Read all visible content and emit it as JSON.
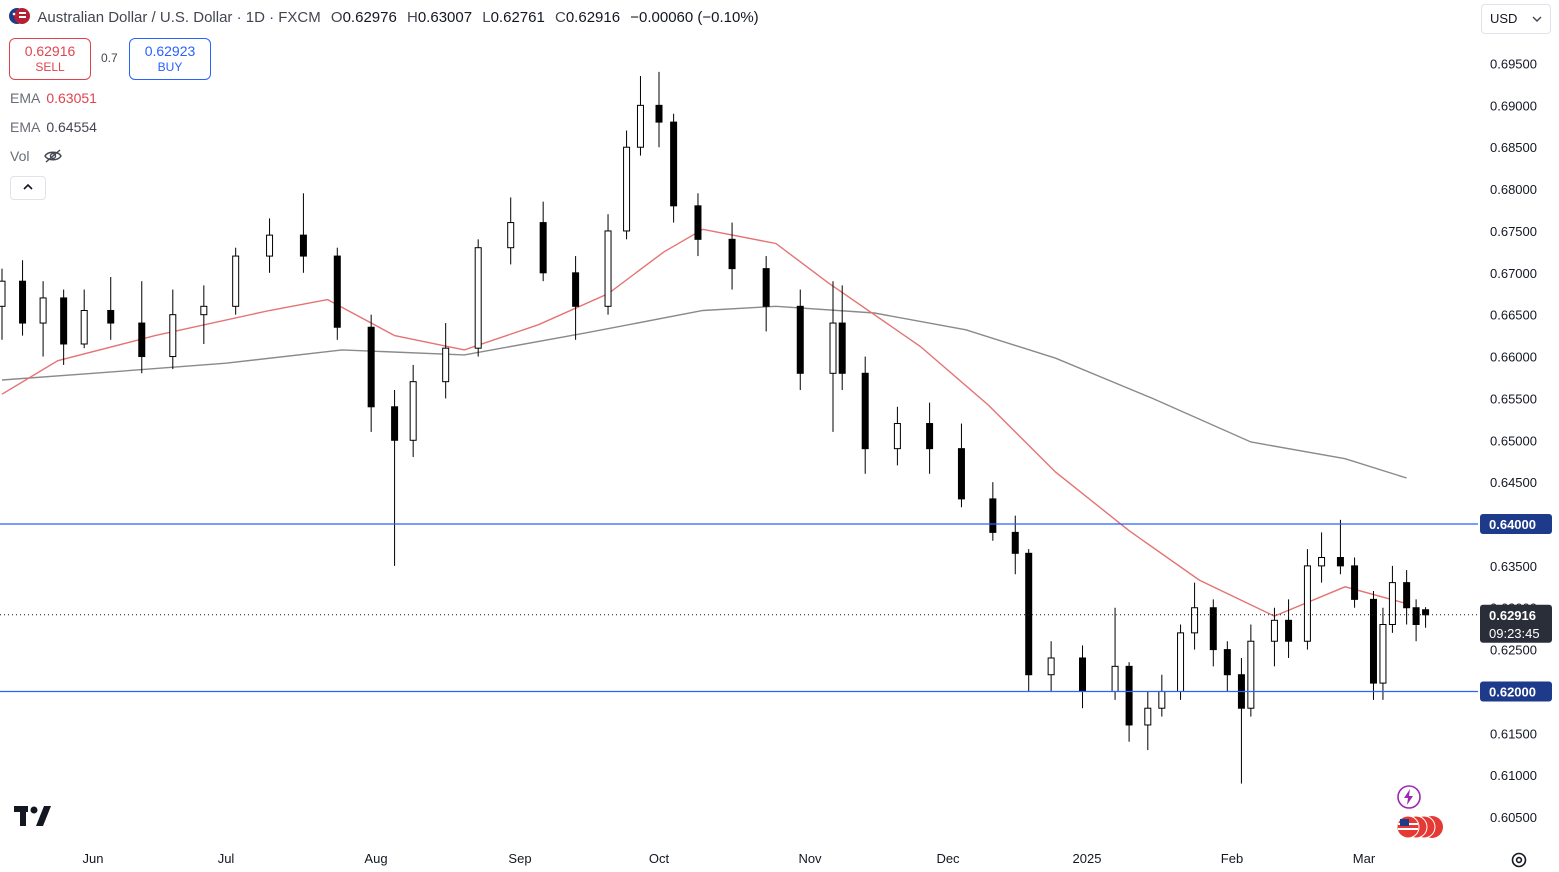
{
  "header": {
    "title": "Australian Dollar / U.S. Dollar · 1D · FXCM",
    "ohlc": [
      {
        "k": "O",
        "v": "0.62976"
      },
      {
        "k": "H",
        "v": "0.63007"
      },
      {
        "k": "L",
        "v": "0.62761"
      },
      {
        "k": "C",
        "v": "0.62916"
      }
    ],
    "change": "−0.00060 (−0.10%)"
  },
  "trade": {
    "sell_price": "0.62916",
    "sell_label": "SELL",
    "spread": "0.7",
    "buy_price": "0.62923",
    "buy_label": "BUY"
  },
  "indicators": {
    "ema1_label": "EMA",
    "ema1_value": "0.63051",
    "ema2_label": "EMA",
    "ema2_value": "0.64554",
    "vol_label": "Vol"
  },
  "currency": "USD",
  "colors": {
    "up": "#ffffff",
    "down": "#000000",
    "ema_fast": "#e57373",
    "ema_slow": "#8a8a8a",
    "hline": "#2962ff",
    "label_bg": "#1e3a8a",
    "price_bg": "#2a2e39"
  },
  "icons": [
    "aud-usd-flag-icon",
    "eye-hidden-icon",
    "chevron-up-icon",
    "chevron-down-icon",
    "tradingview-logo-icon",
    "lightning-icon",
    "us-flags-icon",
    "settings-icon"
  ],
  "chart_data": {
    "type": "candlestick",
    "y_axis": {
      "min": 0.6025,
      "max": 0.699,
      "ticks": [
        "0.60500",
        "0.61000",
        "0.61500",
        "0.62000",
        "0.62500",
        "0.63000",
        "0.63500",
        "0.64000",
        "0.64500",
        "0.65000",
        "0.65500",
        "0.66000",
        "0.66500",
        "0.67000",
        "0.67500",
        "0.68000",
        "0.68500",
        "0.69000",
        "0.69500"
      ]
    },
    "x_axis": {
      "labels": [
        {
          "label": "Jun",
          "date": "2024-06-01"
        },
        {
          "label": "Jul",
          "date": "2024-07-01"
        },
        {
          "label": "Aug",
          "date": "2024-08-01"
        },
        {
          "label": "Sep",
          "date": "2024-09-01"
        },
        {
          "label": "Oct",
          "date": "2024-10-01"
        },
        {
          "label": "Nov",
          "date": "2024-11-01"
        },
        {
          "label": "Dec",
          "date": "2024-12-01"
        },
        {
          "label": "2025",
          "date": "2025-01-01"
        },
        {
          "label": "Feb",
          "date": "2025-02-01"
        },
        {
          "label": "Mar",
          "date": "2025-03-01"
        }
      ]
    },
    "horizontal_lines": [
      {
        "price": 0.64,
        "label": "0.64000"
      },
      {
        "price": 0.62,
        "label": "0.62000"
      }
    ],
    "current_price": {
      "price": 0.62916,
      "label": "0.62916",
      "countdown": "09:23:45"
    },
    "ema_fast": [
      [
        "2024-05-01",
        0.6555
      ],
      [
        "2024-05-20",
        0.6595
      ],
      [
        "2024-06-15",
        0.6625
      ],
      [
        "2024-07-10",
        0.6655
      ],
      [
        "2024-07-22",
        0.6668
      ],
      [
        "2024-08-05",
        0.6625
      ],
      [
        "2024-08-20",
        0.6608
      ],
      [
        "2024-09-05",
        0.6638
      ],
      [
        "2024-09-20",
        0.6675
      ],
      [
        "2024-10-02",
        0.6725
      ],
      [
        "2024-10-10",
        0.6752
      ],
      [
        "2024-10-25",
        0.6735
      ],
      [
        "2024-11-05",
        0.6688
      ],
      [
        "2024-11-25",
        0.6612
      ],
      [
        "2024-12-10",
        0.6542
      ],
      [
        "2024-12-25",
        0.6462
      ],
      [
        "2025-01-10",
        0.6392
      ],
      [
        "2025-01-25",
        0.6333
      ],
      [
        "2025-02-10",
        0.629
      ],
      [
        "2025-02-25",
        0.6325
      ],
      [
        "2025-03-10",
        0.6305
      ]
    ],
    "ema_slow": [
      [
        "2024-05-01",
        0.6572
      ],
      [
        "2024-06-01",
        0.658
      ],
      [
        "2024-07-01",
        0.6592
      ],
      [
        "2024-07-25",
        0.6608
      ],
      [
        "2024-08-20",
        0.6602
      ],
      [
        "2024-09-15",
        0.6628
      ],
      [
        "2024-10-10",
        0.6655
      ],
      [
        "2024-10-25",
        0.666
      ],
      [
        "2024-11-15",
        0.6652
      ],
      [
        "2024-12-05",
        0.6632
      ],
      [
        "2024-12-25",
        0.6598
      ],
      [
        "2025-01-15",
        0.655
      ],
      [
        "2025-02-05",
        0.6498
      ],
      [
        "2025-02-25",
        0.6478
      ],
      [
        "2025-03-10",
        0.6455
      ]
    ],
    "candles": [
      [
        "2024-05-01",
        0.666,
        0.6705,
        0.662,
        0.669
      ],
      [
        "2024-05-08",
        0.669,
        0.6715,
        0.6625,
        0.664
      ],
      [
        "2024-05-15",
        0.664,
        0.669,
        0.66,
        0.667
      ],
      [
        "2024-05-22",
        0.667,
        0.668,
        0.659,
        0.6615
      ],
      [
        "2024-05-29",
        0.6615,
        0.668,
        0.661,
        0.6655
      ],
      [
        "2024-06-05",
        0.6655,
        0.6695,
        0.662,
        0.664
      ],
      [
        "2024-06-12",
        0.664,
        0.669,
        0.658,
        0.66
      ],
      [
        "2024-06-19",
        0.66,
        0.668,
        0.6585,
        0.665
      ],
      [
        "2024-06-26",
        0.665,
        0.6685,
        0.6615,
        0.666
      ],
      [
        "2024-07-03",
        0.666,
        0.673,
        0.665,
        0.672
      ],
      [
        "2024-07-10",
        0.672,
        0.6765,
        0.67,
        0.6745
      ],
      [
        "2024-07-17",
        0.6745,
        0.6795,
        0.67,
        0.672
      ],
      [
        "2024-07-24",
        0.672,
        0.673,
        0.662,
        0.6635
      ],
      [
        "2024-07-31",
        0.6635,
        0.665,
        0.651,
        0.654
      ],
      [
        "2024-08-05",
        0.654,
        0.656,
        0.635,
        0.65
      ],
      [
        "2024-08-09",
        0.65,
        0.659,
        0.648,
        0.657
      ],
      [
        "2024-08-16",
        0.657,
        0.664,
        0.655,
        0.661
      ],
      [
        "2024-08-23",
        0.661,
        0.674,
        0.66,
        0.673
      ],
      [
        "2024-08-30",
        0.673,
        0.679,
        0.671,
        0.676
      ],
      [
        "2024-09-06",
        0.676,
        0.6785,
        0.669,
        0.67
      ],
      [
        "2024-09-13",
        0.67,
        0.672,
        0.662,
        0.666
      ],
      [
        "2024-09-20",
        0.666,
        0.677,
        0.665,
        0.675
      ],
      [
        "2024-09-24",
        0.675,
        0.687,
        0.674,
        0.685
      ],
      [
        "2024-09-27",
        0.685,
        0.6935,
        0.684,
        0.69
      ],
      [
        "2024-10-01",
        0.69,
        0.694,
        0.685,
        0.688
      ],
      [
        "2024-10-04",
        0.688,
        0.689,
        0.676,
        0.678
      ],
      [
        "2024-10-09",
        0.678,
        0.6795,
        0.672,
        0.674
      ],
      [
        "2024-10-16",
        0.674,
        0.676,
        0.668,
        0.6705
      ],
      [
        "2024-10-23",
        0.6705,
        0.672,
        0.663,
        0.666
      ],
      [
        "2024-10-30",
        0.666,
        0.668,
        0.656,
        0.658
      ],
      [
        "2024-11-06",
        0.658,
        0.669,
        0.651,
        0.664
      ],
      [
        "2024-11-08",
        0.664,
        0.6685,
        0.656,
        0.658
      ],
      [
        "2024-11-13",
        0.658,
        0.66,
        0.646,
        0.649
      ],
      [
        "2024-11-20",
        0.649,
        0.654,
        0.647,
        0.652
      ],
      [
        "2024-11-27",
        0.652,
        0.6545,
        0.646,
        0.649
      ],
      [
        "2024-12-04",
        0.649,
        0.652,
        0.642,
        0.643
      ],
      [
        "2024-12-11",
        0.643,
        0.645,
        0.638,
        0.639
      ],
      [
        "2024-12-16",
        0.639,
        0.641,
        0.634,
        0.6365
      ],
      [
        "2024-12-19",
        0.6365,
        0.637,
        0.62,
        0.622
      ],
      [
        "2024-12-24",
        0.622,
        0.626,
        0.62,
        0.624
      ],
      [
        "2024-12-31",
        0.624,
        0.6255,
        0.618,
        0.62
      ],
      [
        "2025-01-07",
        0.62,
        0.63,
        0.619,
        0.623
      ],
      [
        "2025-01-10",
        0.623,
        0.6235,
        0.614,
        0.616
      ],
      [
        "2025-01-14",
        0.616,
        0.62,
        0.613,
        0.618
      ],
      [
        "2025-01-17",
        0.618,
        0.622,
        0.617,
        0.62
      ],
      [
        "2025-01-21",
        0.62,
        0.628,
        0.619,
        0.627
      ],
      [
        "2025-01-24",
        0.627,
        0.633,
        0.625,
        0.63
      ],
      [
        "2025-01-28",
        0.63,
        0.631,
        0.623,
        0.625
      ],
      [
        "2025-01-31",
        0.625,
        0.626,
        0.62,
        0.622
      ],
      [
        "2025-02-03",
        0.622,
        0.624,
        0.609,
        0.618
      ],
      [
        "2025-02-05",
        0.618,
        0.628,
        0.617,
        0.626
      ],
      [
        "2025-02-10",
        0.626,
        0.63,
        0.623,
        0.6285
      ],
      [
        "2025-02-13",
        0.6285,
        0.631,
        0.624,
        0.626
      ],
      [
        "2025-02-17",
        0.626,
        0.637,
        0.625,
        0.635
      ],
      [
        "2025-02-20",
        0.635,
        0.639,
        0.633,
        0.636
      ],
      [
        "2025-02-24",
        0.636,
        0.6405,
        0.634,
        0.635
      ],
      [
        "2025-02-27",
        0.635,
        0.636,
        0.63,
        0.631
      ],
      [
        "2025-03-03",
        0.631,
        0.632,
        0.619,
        0.621
      ],
      [
        "2025-03-05",
        0.621,
        0.63,
        0.619,
        0.628
      ],
      [
        "2025-03-07",
        0.628,
        0.635,
        0.627,
        0.633
      ],
      [
        "2025-03-10",
        0.633,
        0.6345,
        0.628,
        0.63
      ],
      [
        "2025-03-12",
        0.63,
        0.631,
        0.626,
        0.628
      ],
      [
        "2025-03-14",
        0.62976,
        0.63007,
        0.62761,
        0.62916
      ]
    ]
  }
}
